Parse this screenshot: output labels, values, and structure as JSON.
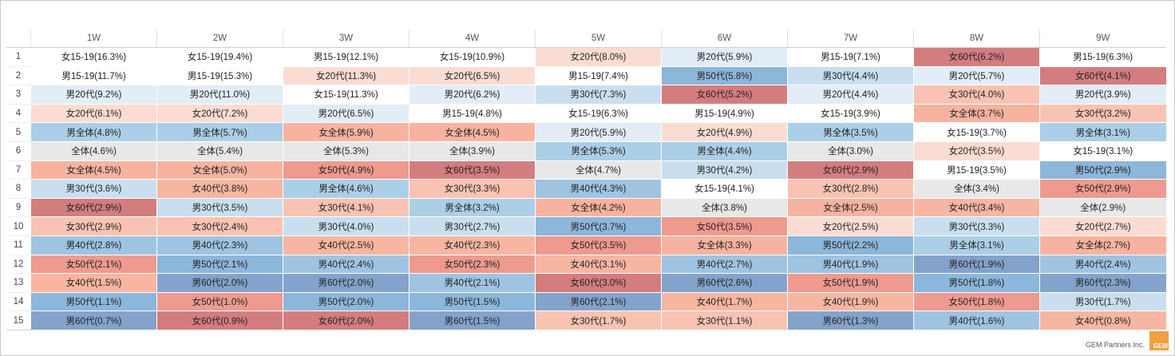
{
  "chart_data": {
    "type": "table",
    "columns": [
      "1W",
      "2W",
      "3W",
      "4W",
      "5W",
      "6W",
      "7W",
      "8W",
      "9W"
    ],
    "ranks": [
      "1",
      "2",
      "3",
      "4",
      "5",
      "6",
      "7",
      "8",
      "9",
      "10",
      "11",
      "12",
      "13",
      "14",
      "15"
    ],
    "rows": [
      [
        "女15-19(16.3%)",
        "女15-19(19.4%)",
        "男15-19(12.1%)",
        "女15-19(10.9%)",
        "女20代(8.0%)",
        "男20代(5.9%)",
        "男15-19(7.1%)",
        "女60代(6.2%)",
        "男15-19(6.3%)"
      ],
      [
        "男15-19(11.7%)",
        "男15-19(15.3%)",
        "女20代(11.3%)",
        "女20代(6.5%)",
        "男15-19(7.4%)",
        "男50代(5.8%)",
        "男30代(4.4%)",
        "男20代(5.7%)",
        "女60代(4.1%)"
      ],
      [
        "男20代(9.2%)",
        "男20代(11.0%)",
        "女15-19(11.3%)",
        "男20代(6.2%)",
        "男30代(7.3%)",
        "女60代(5.2%)",
        "男20代(4.4%)",
        "女30代(4.0%)",
        "男20代(3.9%)"
      ],
      [
        "女20代(6.1%)",
        "女20代(7.2%)",
        "男20代(6.5%)",
        "男15-19(4.8%)",
        "女15-19(6.3%)",
        "男15-19(4.9%)",
        "女15-19(3.9%)",
        "女全体(3.7%)",
        "女30代(3.2%)"
      ],
      [
        "男全体(4.8%)",
        "男全体(5.7%)",
        "女全体(5.9%)",
        "女全体(4.5%)",
        "男20代(5.9%)",
        "女20代(4.9%)",
        "男全体(3.5%)",
        "女15-19(3.7%)",
        "男全体(3.1%)"
      ],
      [
        "全体(4.6%)",
        "全体(5.4%)",
        "全体(5.3%)",
        "全体(3.9%)",
        "男全体(5.3%)",
        "男全体(4.4%)",
        "全体(3.0%)",
        "女20代(3.5%)",
        "女15-19(3.1%)"
      ],
      [
        "女全体(4.5%)",
        "女全体(5.0%)",
        "女50代(4.9%)",
        "女60代(3.5%)",
        "全体(4.7%)",
        "男30代(4.2%)",
        "女60代(2.9%)",
        "男15-19(3.5%)",
        "男50代(2.9%)"
      ],
      [
        "男30代(3.6%)",
        "女40代(3.8%)",
        "男全体(4.6%)",
        "女30代(3.3%)",
        "男40代(4.3%)",
        "女15-19(4.1%)",
        "女30代(2.8%)",
        "全体(3.4%)",
        "女50代(2.9%)"
      ],
      [
        "女60代(2.9%)",
        "男30代(3.5%)",
        "女30代(4.1%)",
        "男全体(3.2%)",
        "女全体(4.2%)",
        "全体(3.8%)",
        "女全体(2.5%)",
        "女40代(3.4%)",
        "全体(2.9%)"
      ],
      [
        "女30代(2.9%)",
        "女30代(2.4%)",
        "男30代(4.0%)",
        "男30代(2.7%)",
        "男50代(3.7%)",
        "女50代(3.5%)",
        "女20代(2.5%)",
        "男30代(3.3%)",
        "女20代(2.7%)"
      ],
      [
        "男40代(2.8%)",
        "男40代(2.3%)",
        "女40代(2.5%)",
        "女40代(2.3%)",
        "女50代(3.5%)",
        "女全体(3.3%)",
        "男50代(2.2%)",
        "男全体(3.1%)",
        "女全体(2.7%)"
      ],
      [
        "女50代(2.1%)",
        "男50代(2.1%)",
        "男40代(2.4%)",
        "女50代(2.3%)",
        "女40代(3.1%)",
        "男40代(2.7%)",
        "男40代(1.9%)",
        "男60代(1.9%)",
        "男40代(2.4%)"
      ],
      [
        "女40代(1.5%)",
        "男60代(2.0%)",
        "男60代(2.0%)",
        "男40代(2.1%)",
        "女60代(3.0%)",
        "男60代(2.6%)",
        "女50代(1.9%)",
        "男50代(1.8%)",
        "男60代(2.3%)"
      ],
      [
        "男50代(1.1%)",
        "女50代(1.0%)",
        "男50代(2.0%)",
        "男50代(1.5%)",
        "男60代(2.1%)",
        "女40代(1.7%)",
        "女40代(1.9%)",
        "女50代(1.8%)",
        "男30代(1.7%)"
      ],
      [
        "男60代(0.7%)",
        "女60代(0.9%)",
        "女60代(2.0%)",
        "男60代(1.5%)",
        "女30代(1.7%)",
        "女30代(1.1%)",
        "男60代(1.3%)",
        "男40代(1.6%)",
        "女40代(0.8%)"
      ]
    ],
    "segment_colors": {
      "女15-19": "#ffffff",
      "女20代": "#fbdcd2",
      "女30代": "#f8c3b2",
      "女全体": "#f7b3a0",
      "女40代": "#f7b6a2",
      "女50代": "#ee9a8f",
      "女60代": "#d47d7f",
      "男15-19": "#ffffff",
      "男20代": "#e2edf7",
      "男30代": "#c9dfef",
      "男全体": "#abcfe6",
      "男40代": "#9ec4e2",
      "男50代": "#8db6db",
      "男60代": "#84a3cb",
      "全体": "#e8e8e8"
    }
  },
  "footer": {
    "credit": "GEM Partners Inc.",
    "logo_text": "GEM"
  }
}
